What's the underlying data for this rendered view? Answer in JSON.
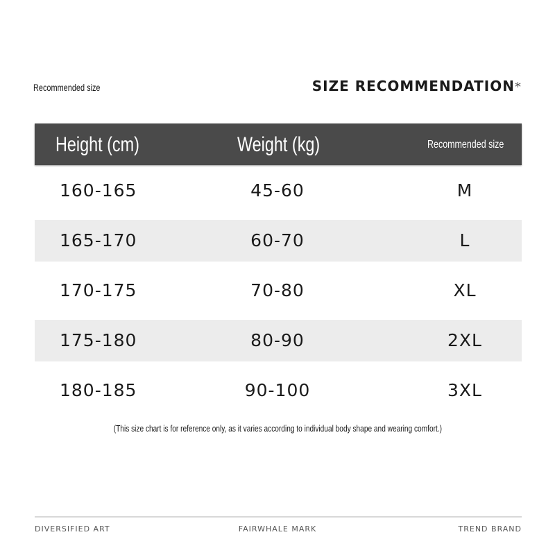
{
  "header_left": "Recommended size",
  "title": "SIZE RECOMMENDATION",
  "title_mark": "*",
  "table": {
    "columns": [
      "Height (cm)",
      "Weight (kg)",
      "Recommended size"
    ],
    "rows": [
      [
        "160-165",
        "45-60",
        "M"
      ],
      [
        "165-170",
        "60-70",
        "L"
      ],
      [
        "170-175",
        "70-80",
        "XL"
      ],
      [
        "175-180",
        "80-90",
        "2XL"
      ],
      [
        "180-185",
        "90-100",
        "3XL"
      ]
    ]
  },
  "note": "(This size chart is for reference only, as it varies according to individual body shape and wearing comfort.)",
  "footer": [
    "DIVERSIFIED ART",
    "FAIRWHALE MARK",
    "TREND BRAND"
  ],
  "colors": {
    "header_bg": "#4a4a4a",
    "alt_row_bg": "#ececec"
  }
}
